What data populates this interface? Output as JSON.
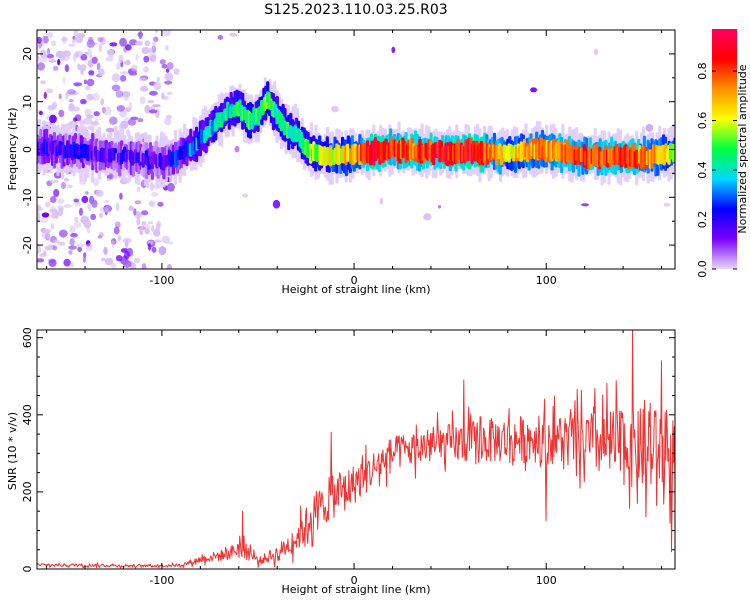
{
  "title": "S125.2023.110.03.25.R03",
  "chart_data": [
    {
      "type": "heatmap",
      "xlabel": "Height of straight line (km)",
      "ylabel": "Frequency (Hz)",
      "xlim": [
        -165,
        167
      ],
      "ylim": [
        -25,
        25
      ],
      "xticks": [
        -100,
        0,
        100
      ],
      "yticks": [
        -20,
        -10,
        0,
        10,
        20
      ],
      "colorbar": {
        "label": "Normalized spectral amplitude",
        "range": [
          0,
          0.97
        ],
        "ticks": [
          0.0,
          0.2,
          0.4,
          0.6,
          0.8
        ],
        "colormap": [
          "#e8d8f8",
          "#7a00ff",
          "#0000ff",
          "#00d8ff",
          "#00ff40",
          "#ffff00",
          "#ff9000",
          "#ff0000",
          "#ff0060"
        ]
      },
      "ridge": [
        {
          "x": -165,
          "y": 0.5
        },
        {
          "x": -140,
          "y": -0.5
        },
        {
          "x": -120,
          "y": -1.5
        },
        {
          "x": -100,
          "y": -2.5
        },
        {
          "x": -95,
          "y": -2
        },
        {
          "x": -88,
          "y": -0.5
        },
        {
          "x": -80,
          "y": 2
        },
        {
          "x": -75,
          "y": 4.5
        },
        {
          "x": -70,
          "y": 6.5
        },
        {
          "x": -65,
          "y": 8
        },
        {
          "x": -60,
          "y": 9
        },
        {
          "x": -55,
          "y": 6
        },
        {
          "x": -50,
          "y": 7
        },
        {
          "x": -45,
          "y": 10.5
        },
        {
          "x": -40,
          "y": 7
        },
        {
          "x": -35,
          "y": 4
        },
        {
          "x": -30,
          "y": 3.5
        },
        {
          "x": -25,
          "y": 0
        },
        {
          "x": -20,
          "y": -1
        },
        {
          "x": -10,
          "y": -1.5
        },
        {
          "x": 0,
          "y": -1
        },
        {
          "x": 20,
          "y": 0
        },
        {
          "x": 40,
          "y": -0.5
        },
        {
          "x": 60,
          "y": -0.5
        },
        {
          "x": 80,
          "y": -1
        },
        {
          "x": 100,
          "y": 0
        },
        {
          "x": 120,
          "y": -1.5
        },
        {
          "x": 140,
          "y": -1.5
        },
        {
          "x": 155,
          "y": -1.5
        },
        {
          "x": 167,
          "y": -0.5
        }
      ],
      "amplitude": [
        {
          "x": -165,
          "a": 0.2
        },
        {
          "x": -100,
          "a": 0.15
        },
        {
          "x": -80,
          "a": 0.35
        },
        {
          "x": -60,
          "a": 0.45
        },
        {
          "x": -45,
          "a": 0.5
        },
        {
          "x": -30,
          "a": 0.45
        },
        {
          "x": -20,
          "a": 0.55
        },
        {
          "x": 0,
          "a": 0.7
        },
        {
          "x": 10,
          "a": 0.9
        },
        {
          "x": 30,
          "a": 0.8
        },
        {
          "x": 45,
          "a": 0.88
        },
        {
          "x": 65,
          "a": 0.9
        },
        {
          "x": 80,
          "a": 0.65
        },
        {
          "x": 100,
          "a": 0.75
        },
        {
          "x": 120,
          "a": 0.8
        },
        {
          "x": 140,
          "a": 0.85
        },
        {
          "x": 167,
          "a": 0.6
        }
      ]
    },
    {
      "type": "line",
      "xlabel": "Height of straight line (km)",
      "ylabel": "SNR (10 * v/v)",
      "xlim": [
        -165,
        167
      ],
      "ylim": [
        0,
        620
      ],
      "xticks": [
        -100,
        0,
        100
      ],
      "yticks": [
        0,
        200,
        400,
        600
      ],
      "series_color": "#ee3333",
      "envelope": [
        {
          "x": -165,
          "mean": 10,
          "spread": 5
        },
        {
          "x": -140,
          "mean": 10,
          "spread": 5
        },
        {
          "x": -110,
          "mean": 8,
          "spread": 4
        },
        {
          "x": -90,
          "mean": 10,
          "spread": 5
        },
        {
          "x": -80,
          "mean": 25,
          "spread": 12
        },
        {
          "x": -65,
          "mean": 40,
          "spread": 20
        },
        {
          "x": -58,
          "mean": 60,
          "spread": 40
        },
        {
          "x": -50,
          "mean": 20,
          "spread": 12
        },
        {
          "x": -40,
          "mean": 40,
          "spread": 25
        },
        {
          "x": -30,
          "mean": 80,
          "spread": 45
        },
        {
          "x": -20,
          "mean": 150,
          "spread": 70
        },
        {
          "x": -10,
          "mean": 190,
          "spread": 70
        },
        {
          "x": 0,
          "mean": 220,
          "spread": 65
        },
        {
          "x": 10,
          "mean": 260,
          "spread": 60
        },
        {
          "x": 20,
          "mean": 300,
          "spread": 55
        },
        {
          "x": 40,
          "mean": 320,
          "spread": 60
        },
        {
          "x": 60,
          "mean": 330,
          "spread": 70
        },
        {
          "x": 80,
          "mean": 335,
          "spread": 75
        },
        {
          "x": 100,
          "mean": 340,
          "spread": 80
        },
        {
          "x": 120,
          "mean": 330,
          "spread": 100
        },
        {
          "x": 140,
          "mean": 320,
          "spread": 130
        },
        {
          "x": 167,
          "mean": 300,
          "spread": 140
        }
      ],
      "spikes": [
        {
          "x": -58,
          "y": 150
        },
        {
          "x": 57,
          "y": 490
        },
        {
          "x": 145,
          "y": 620
        },
        {
          "x": 160,
          "y": 540
        },
        {
          "x": 165,
          "y": 45
        },
        {
          "x": 100,
          "y": 125
        },
        {
          "x": -12,
          "y": 355
        },
        {
          "x": 152,
          "y": 135
        }
      ]
    }
  ]
}
